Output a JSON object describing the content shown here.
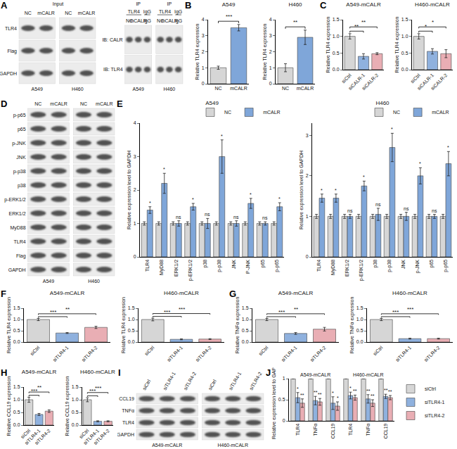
{
  "chart_data": [
    {
      "panel": "B",
      "type": "bar",
      "title": "A549",
      "categories": [
        "NC",
        "mCALR"
      ],
      "values": [
        1.0,
        3.5
      ],
      "errors": [
        0.1,
        0.2
      ],
      "colors": [
        "#d6d6d6",
        "#7fa6d9"
      ],
      "annotations": [
        null,
        "***"
      ],
      "y_label": "Relative TLR4 expression",
      "ylim": [
        0,
        4
      ],
      "yticks": [
        0,
        1,
        2,
        3,
        4
      ]
    },
    {
      "type": "bar",
      "title": "H460",
      "categories": [
        "NC",
        "mCALR"
      ],
      "values": [
        1.0,
        2.9
      ],
      "errors": [
        0.25,
        0.45
      ],
      "colors": [
        "#d6d6d6",
        "#7fa6d9"
      ],
      "annotations": [
        null,
        "**"
      ],
      "y_label": "Relative TLR4 expression",
      "ylim": [
        0,
        4
      ],
      "yticks": [
        0,
        1,
        2,
        3,
        4
      ]
    },
    {
      "panel": "C",
      "type": "bar",
      "title": "A549-mCALR",
      "categories": [
        "siCtrl",
        "siCALR-1",
        "siCALR-2"
      ],
      "values": [
        1.0,
        0.4,
        0.48
      ],
      "errors": [
        0.08,
        0.08,
        0.03
      ],
      "colors": [
        "#d6d6d6",
        "#8fb1de",
        "#e9aeb4"
      ],
      "annotations": [
        null,
        "**",
        "**"
      ],
      "y_label": "Relative TLR4 expression",
      "ylim": [
        0,
        1.5
      ],
      "yticks": [
        {
          "value": 0,
          "label": "0.0"
        },
        {
          "value": 0.5,
          "label": "0.5"
        },
        {
          "value": 1,
          "label": "1.0"
        },
        {
          "value": 1.5,
          "label": "1.5"
        }
      ]
    },
    {
      "type": "bar",
      "title": "H460-mCALR",
      "categories": [
        "siCtrl",
        "siCALR-1",
        "siCALR-2"
      ],
      "values": [
        1.0,
        0.55,
        0.48
      ],
      "errors": [
        0.08,
        0.08,
        0.12
      ],
      "colors": [
        "#d6d6d6",
        "#8fb1de",
        "#e9aeb4"
      ],
      "annotations": [
        null,
        "*",
        "*"
      ],
      "y_label": "Relative TLR4 expression",
      "ylim": [
        0,
        1.5
      ],
      "yticks": [
        {
          "value": 0,
          "label": "0.0"
        },
        {
          "value": 0.5,
          "label": "0.5"
        },
        {
          "value": 1,
          "label": "1.0"
        },
        {
          "value": 1.5,
          "label": "1.5"
        }
      ]
    },
    {
      "panel": "E",
      "type": "bar",
      "title": "A549",
      "categories": [
        "TLR4",
        "MyD88",
        "ERK1/2",
        "p-ERK1/2",
        "p38",
        "p-p38",
        "JNK",
        "P-JNK",
        "p65",
        "p-p65"
      ],
      "legend": "top-right",
      "y_label": "Relative expression level to GAPDH",
      "ylim": [
        0,
        4
      ],
      "yticks": [
        0,
        1,
        2,
        3,
        4
      ],
      "series": [
        {
          "name": "NC",
          "color": "#d6d6d6",
          "values": [
            1.0,
            1.0,
            1.0,
            1.0,
            1.0,
            1.0,
            1.0,
            1.0,
            1.0,
            1.0
          ],
          "errors": [
            0.05,
            0.05,
            0.05,
            0.05,
            0.05,
            0.05,
            0.05,
            0.05,
            0.05,
            0.05
          ]
        },
        {
          "name": "mCALR",
          "color": "#7fa6d9",
          "values": [
            1.4,
            2.2,
            1.0,
            1.5,
            1.0,
            3.0,
            1.0,
            1.6,
            1.0,
            1.5
          ],
          "errors": [
            0.1,
            0.3,
            0.08,
            0.1,
            0.15,
            0.5,
            0.08,
            0.15,
            0.05,
            0.12
          ],
          "annotations": [
            "*",
            "*",
            "ns",
            "*",
            "ns",
            "*",
            "ns",
            "*",
            "ns",
            "*"
          ]
        }
      ]
    },
    {
      "type": "bar",
      "title": "H460",
      "categories": [
        "TLR4",
        "MyD88",
        "ERK1/2",
        "p-ERK1/2",
        "p38",
        "p-p38",
        "JNK",
        "p-JNK",
        "p65",
        "p-p65"
      ],
      "legend": "top-right",
      "y_label": "Relative expression level to GAPDH",
      "ylim": [
        0,
        3.3
      ],
      "yticks": [
        0,
        1,
        2,
        3
      ],
      "series": [
        {
          "name": "NC",
          "color": "#d6d6d6",
          "values": [
            1.0,
            1.0,
            1.0,
            1.0,
            1.0,
            1.0,
            1.0,
            1.0,
            1.0,
            1.0
          ],
          "errors": [
            0.05,
            0.05,
            0.05,
            0.05,
            0.05,
            0.05,
            0.05,
            0.05,
            0.05,
            0.05
          ]
        },
        {
          "name": "mCALR",
          "color": "#7fa6d9",
          "values": [
            1.45,
            1.45,
            1.0,
            1.75,
            1.05,
            2.7,
            1.0,
            2.0,
            1.0,
            2.3
          ],
          "errors": [
            0.1,
            0.1,
            0.05,
            0.12,
            0.15,
            0.35,
            0.1,
            0.2,
            0.05,
            0.3
          ],
          "annotations": [
            "*",
            "*",
            "ns",
            "*",
            "ns",
            "*",
            "ns",
            "*",
            "ns",
            "*"
          ]
        }
      ]
    },
    {
      "panel": "F",
      "type": "bar",
      "title": "A549-mCALR",
      "categories": [
        "siCtrl",
        "siTLR4-1",
        "siTLR4-2"
      ],
      "values": [
        1.0,
        0.4,
        0.65
      ],
      "errors": [
        0.05,
        0.02,
        0.05
      ],
      "colors": [
        "#d6d6d6",
        "#8fb1de",
        "#e9aeb4"
      ],
      "annotations": [
        null,
        "***",
        "**"
      ],
      "y_label": "Relative TLR4 expression",
      "ylim": [
        0,
        1.5
      ],
      "yticks": [
        {
          "value": 0,
          "label": "0.0"
        },
        {
          "value": 0.5,
          "label": "0.5"
        },
        {
          "value": 1,
          "label": "1.0"
        },
        {
          "value": 1.5,
          "label": "1.5"
        }
      ]
    },
    {
      "type": "bar",
      "title": "H460-mCALR",
      "categories": [
        "siCtrl",
        "siTLR4-1",
        "siTLR4-2"
      ],
      "values": [
        1.0,
        0.12,
        0.13
      ],
      "errors": [
        0.06,
        0.02,
        0.02
      ],
      "colors": [
        "#d6d6d6",
        "#8fb1de",
        "#e9aeb4"
      ],
      "annotations": [
        null,
        "***",
        "***"
      ],
      "y_label": "Relative TLR4 expression",
      "ylim": [
        0,
        1.5
      ],
      "yticks": [
        {
          "value": 0,
          "label": "0.0"
        },
        {
          "value": 0.5,
          "label": "0.5"
        },
        {
          "value": 1,
          "label": "1.0"
        },
        {
          "value": 1.5,
          "label": "1.5"
        }
      ]
    },
    {
      "panel": "G",
      "type": "bar",
      "title": "A549-mCALR",
      "categories": [
        "siCtrl",
        "siTLR4-1",
        "siTLR4-2"
      ],
      "values": [
        1.0,
        0.38,
        0.57
      ],
      "errors": [
        0.05,
        0.04,
        0.08
      ],
      "colors": [
        "#d6d6d6",
        "#8fb1de",
        "#e9aeb4"
      ],
      "annotations": [
        null,
        "***",
        "**"
      ],
      "y_label": "Relative TNFα expression",
      "ylim": [
        0,
        1.5
      ],
      "yticks": [
        {
          "value": 0,
          "label": "0.0"
        },
        {
          "value": 0.5,
          "label": "0.5"
        },
        {
          "value": 1,
          "label": "1.0"
        },
        {
          "value": 1.5,
          "label": "1.5"
        }
      ]
    },
    {
      "type": "bar",
      "title": "H460-mCALR",
      "categories": [
        "siCtrl",
        "siTLR4-1",
        "siTLR4-2"
      ],
      "values": [
        1.0,
        0.15,
        0.15
      ],
      "errors": [
        0.05,
        0.02,
        0.02
      ],
      "colors": [
        "#d6d6d6",
        "#8fb1de",
        "#e9aeb4"
      ],
      "annotations": [
        null,
        "***",
        "***"
      ],
      "y_label": "Relative TNFα expression",
      "ylim": [
        0,
        1.5
      ],
      "yticks": [
        {
          "value": 0,
          "label": "0.0"
        },
        {
          "value": 0.5,
          "label": "0.5"
        },
        {
          "value": 1,
          "label": "1.0"
        },
        {
          "value": 1.5,
          "label": "1.5"
        }
      ]
    },
    {
      "panel": "H",
      "type": "bar",
      "title": "A549-mCALR",
      "categories": [
        "siCtrl",
        "siTLR4-1",
        "siTLR4-2"
      ],
      "values": [
        1.0,
        0.42,
        0.55
      ],
      "errors": [
        0.1,
        0.04,
        0.05
      ],
      "colors": [
        "#d6d6d6",
        "#8fb1de",
        "#e9aeb4"
      ],
      "annotations": [
        null,
        "***",
        "**"
      ],
      "y_label": "Relative CCL19 expression",
      "ylim": [
        0,
        1.5
      ],
      "yticks": [
        {
          "value": 0,
          "label": "0.0"
        },
        {
          "value": 0.5,
          "label": "0.5"
        },
        {
          "value": 1,
          "label": "1.0"
        },
        {
          "value": 1.5,
          "label": "1.5"
        }
      ]
    },
    {
      "type": "bar",
      "title": "H460-mCALR",
      "categories": [
        "siCtrl",
        "siTLR4-1",
        "siTLR4-2"
      ],
      "values": [
        1.0,
        0.15,
        0.15
      ],
      "errors": [
        0.08,
        0.02,
        0.02
      ],
      "colors": [
        "#d6d6d6",
        "#8fb1de",
        "#e9aeb4"
      ],
      "annotations": [
        null,
        "***",
        "***"
      ],
      "y_label": "Relative CCL19 expression",
      "ylim": [
        0,
        1.5
      ],
      "yticks": [
        {
          "value": 0,
          "label": "0.0"
        },
        {
          "value": 0.5,
          "label": "0.5"
        },
        {
          "value": 1,
          "label": "1.0"
        },
        {
          "value": 1.5,
          "label": "1.5"
        }
      ]
    },
    {
      "panel": "J",
      "type": "bar",
      "categories": [
        "TLR4",
        "TNFα",
        "CCL19",
        "TLR4",
        "TNFα",
        "CCL19"
      ],
      "groups": [
        {
          "label": "A549-mCALR",
          "count": 3
        },
        {
          "label": "H460-mCALR",
          "count": 3
        }
      ],
      "legend": "right",
      "y_label": "Relative expression level to GAPDH",
      "ylim": [
        0,
        1
      ],
      "yticks": [
        0,
        0.5,
        1
      ],
      "series": [
        {
          "name": "siCtrl",
          "color": "#d6d6d6",
          "values": [
            1.0,
            1.0,
            1.0,
            1.0,
            1.0,
            1.0
          ],
          "errors": [
            0,
            0,
            0,
            0,
            0,
            0
          ]
        },
        {
          "name": "siTLR4-1",
          "color": "#8fb1de",
          "values": [
            0.55,
            0.48,
            0.42,
            0.6,
            0.52,
            0.58
          ],
          "errors": [
            0.12,
            0.1,
            0.15,
            0.08,
            0.1,
            0.05
          ],
          "annotations": [
            "*",
            "**",
            "*",
            "*",
            "**",
            "**"
          ]
        },
        {
          "name": "siTLR4-2",
          "color": "#e9aeb4",
          "values": [
            0.42,
            0.45,
            0.35,
            0.55,
            0.42,
            0.55
          ],
          "errors": [
            0.1,
            0.08,
            0.1,
            0.06,
            0.08,
            0.05
          ],
          "annotations": [
            "**",
            "**",
            "*",
            "**",
            "**",
            "**"
          ]
        }
      ]
    }
  ],
  "blots": [
    {
      "panel": "A",
      "header": "Input",
      "rows": [
        "TLR4",
        "Flag",
        "GAPDH"
      ],
      "groups": [
        {
          "label": "A549",
          "lanes": [
            "NC",
            "mCALR"
          ]
        },
        {
          "label": "H460",
          "lanes": [
            "NC",
            "mCALR"
          ]
        }
      ]
    },
    {
      "rows": [
        "IB: CALR",
        "IB: TLR4"
      ],
      "groups": [
        {
          "label": "A549",
          "header": "IP",
          "lane_headers": [
            {
              "label": "TLR4",
              "span": 2
            },
            {
              "label": "IgG",
              "span": 1
            }
          ],
          "lanes": [
            "NC",
            "mCALR",
            "IgG"
          ]
        },
        {
          "label": "H460",
          "header": "IP",
          "lane_headers": [
            {
              "label": "TLR4",
              "span": 2
            },
            {
              "label": "IgG",
              "span": 1
            }
          ],
          "lanes": [
            "NC",
            "mCALR",
            "IgG"
          ]
        }
      ]
    },
    {
      "panel": "D",
      "rows": [
        "p-p65",
        "p65",
        "p-JNK",
        "JNK",
        "p-p38",
        "p38",
        "p-ERK1/2",
        "ERK1/2",
        "MyD88",
        "TLR4",
        "Flag",
        "GAPDH"
      ],
      "groups": [
        {
          "label": "A549",
          "lanes": [
            "NC",
            "mCALR"
          ]
        },
        {
          "label": "H460",
          "lanes": [
            "NC",
            "mCALR"
          ]
        }
      ]
    },
    {
      "panel": "I",
      "rows": [
        "CCL19",
        "TNFα",
        "TLR4",
        "GAPDH"
      ],
      "groups": [
        {
          "label": "A549-mCALR",
          "lanes": [
            "siCtrl",
            "siTLR4-1",
            "siTLR4-2"
          ]
        },
        {
          "label": "H460-mCALR",
          "lanes": [
            "siCtrl",
            "siTLR4-1",
            "siTLR4-2"
          ]
        }
      ]
    }
  ]
}
